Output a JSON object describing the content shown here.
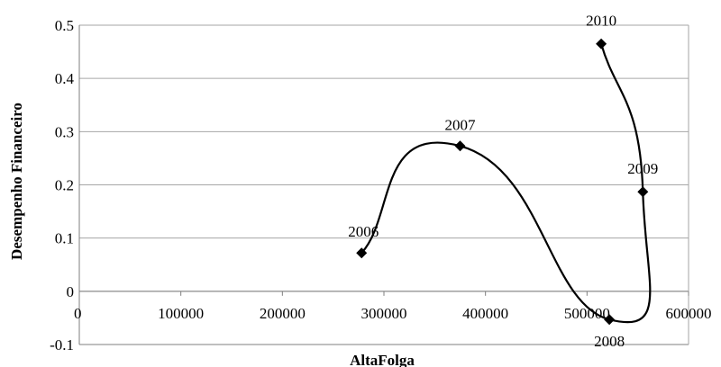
{
  "chart_data": {
    "type": "scatter",
    "title": "",
    "xlabel": "AltaFolga",
    "ylabel": "Desempenho Financeiro",
    "xlim": [
      0,
      600000
    ],
    "ylim": [
      -0.1,
      0.5
    ],
    "x_ticks": [
      0,
      100000,
      200000,
      300000,
      400000,
      500000,
      600000
    ],
    "y_ticks": [
      -0.1,
      0,
      0.1,
      0.2,
      0.3,
      0.4,
      0.5
    ],
    "x_tick_labels": [
      "0",
      "100000",
      "200000",
      "300000",
      "400000",
      "500000",
      "600000"
    ],
    "y_tick_labels": [
      "-0.1",
      "0",
      "0.1",
      "0.2",
      "0.3",
      "0.4",
      "0.5"
    ],
    "grid": "horizontal",
    "legend": "none",
    "line": "smoothed",
    "series": [
      {
        "points": [
          {
            "label": "2006",
            "x": 278000,
            "y": 0.072
          },
          {
            "label": "2007",
            "x": 375000,
            "y": 0.273
          },
          {
            "label": "2008",
            "x": 522000,
            "y": -0.053
          },
          {
            "label": "2009",
            "x": 555000,
            "y": 0.187
          },
          {
            "label": "2010",
            "x": 514000,
            "y": 0.465
          }
        ]
      }
    ]
  }
}
